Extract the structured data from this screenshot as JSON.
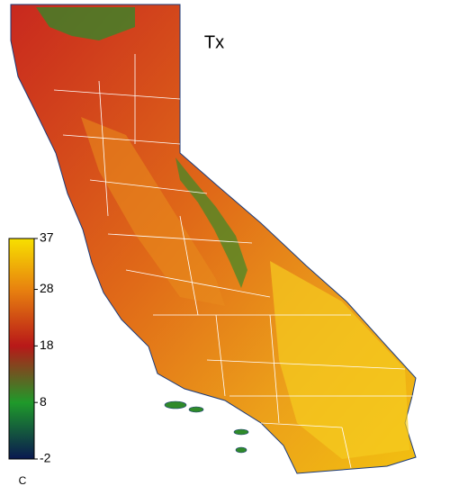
{
  "map": {
    "title": "Tx"
  },
  "colorbar": {
    "ticks": [
      37,
      28,
      18,
      8,
      -2
    ],
    "colors": [
      "#f7e000",
      "#e8820f",
      "#b81818",
      "#1f9a2a",
      "#0a1850"
    ],
    "unit": "C"
  }
}
